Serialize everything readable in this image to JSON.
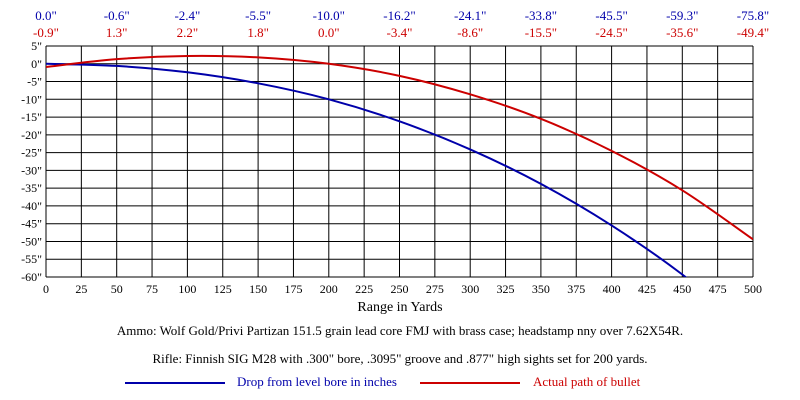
{
  "chart_data": {
    "type": "line",
    "xlabel": "Range in Yards",
    "ylabel": "",
    "xlim": [
      0,
      500
    ],
    "ylim": [
      -60,
      5
    ],
    "x_ticks": [
      0,
      25,
      50,
      75,
      100,
      125,
      150,
      175,
      200,
      225,
      250,
      275,
      300,
      325,
      350,
      375,
      400,
      425,
      450,
      475,
      500
    ],
    "y_ticks": [
      5,
      0,
      -5,
      -10,
      -15,
      -20,
      -25,
      -30,
      -35,
      -40,
      -45,
      -50,
      -55,
      -60
    ],
    "y_tick_labels": [
      "5\"",
      "0\"",
      "-5\"",
      "-10\"",
      "-15\"",
      "-20\"",
      "-25\"",
      "-30\"",
      "-35\"",
      "-40\"",
      "-45\"",
      "-50\"",
      "-55\"",
      "-60\""
    ],
    "grid": true,
    "legend_position": "bottom",
    "top_label_x": [
      0,
      50,
      100,
      150,
      200,
      250,
      300,
      350,
      400,
      450,
      500
    ],
    "top_labels_drop": [
      "0.0\"",
      "-0.6\"",
      "-2.4\"",
      "-5.5\"",
      "-10.0\"",
      "-16.2\"",
      "-24.1\"",
      "-33.8\"",
      "-45.5\"",
      "-59.3\"",
      "-75.8\""
    ],
    "top_labels_path": [
      "-0.9\"",
      "1.3\"",
      "2.2\"",
      "1.8\"",
      "0.0\"",
      "-3.4\"",
      "-8.6\"",
      "-15.5\"",
      "-24.5\"",
      "-35.6\"",
      "-49.4\""
    ],
    "series": [
      {
        "name": "Drop from level bore in inches",
        "color": "#0000aa",
        "x": [
          0,
          50,
          100,
          150,
          200,
          250,
          300,
          350,
          400,
          450,
          500
        ],
        "y": [
          0.0,
          -0.6,
          -2.4,
          -5.5,
          -10.0,
          -16.2,
          -24.1,
          -33.8,
          -45.5,
          -59.3,
          -75.8
        ]
      },
      {
        "name": "Actual path of bullet",
        "color": "#cc0000",
        "x": [
          0,
          50,
          100,
          150,
          200,
          250,
          300,
          350,
          400,
          450,
          500
        ],
        "y": [
          -0.9,
          1.3,
          2.2,
          1.8,
          0.0,
          -3.4,
          -8.6,
          -15.5,
          -24.5,
          -35.6,
          -49.4
        ]
      }
    ]
  },
  "captions": {
    "ammo": "Ammo:  Wolf Gold/Privi Partizan 151.5 grain lead core FMJ with brass case; headstamp nny over 7.62X54R.",
    "rifle": "Rifle:  Finnish SIG M28 with .300\" bore, .3095\" groove and .877\" high sights set for 200 yards."
  },
  "colors": {
    "drop": "#0000aa",
    "path": "#cc0000",
    "grid": "#000000"
  }
}
